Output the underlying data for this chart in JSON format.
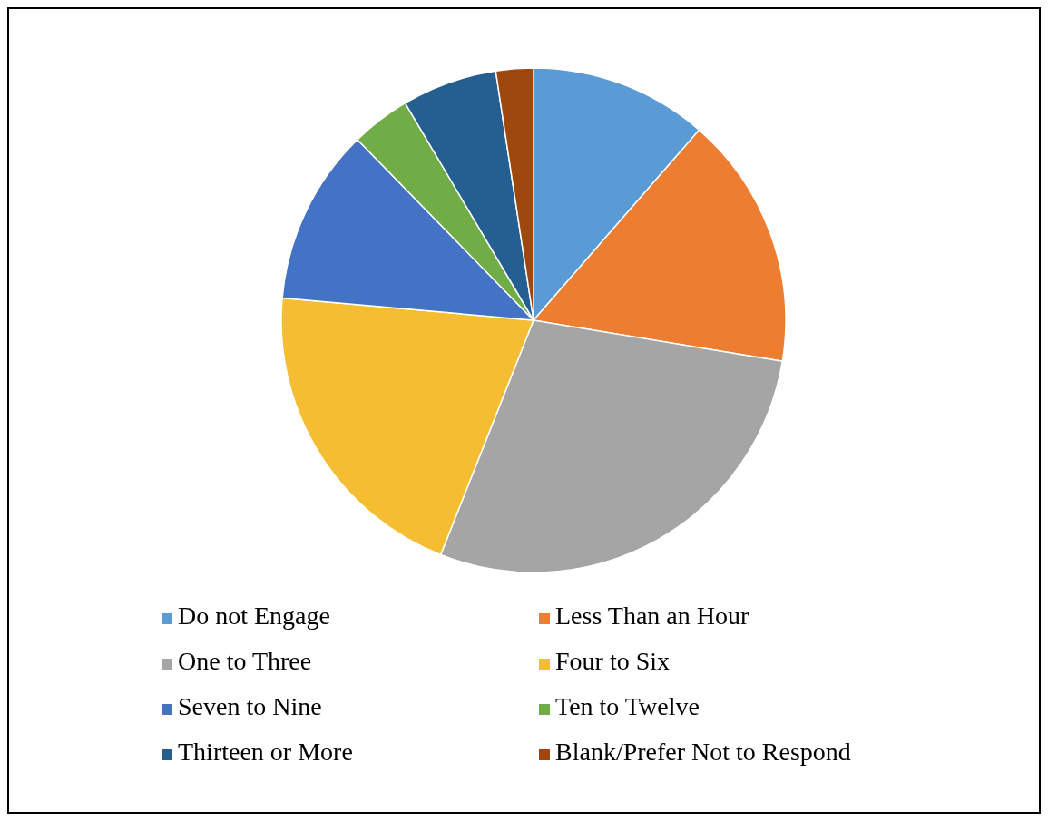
{
  "chart_data": {
    "type": "pie",
    "categories": [
      "Do not Engage",
      "Less Than an Hour",
      "One to Three",
      "Four to Six",
      "Seven to Nine",
      "Ten to Twelve",
      "Thirteen or More",
      "Blank/Prefer Not to Respond"
    ],
    "values": [
      11.4,
      16.2,
      28.4,
      20.4,
      11.3,
      3.8,
      6.1,
      2.4
    ],
    "colors": [
      "#5b9bd5",
      "#ed7d31",
      "#a5a5a5",
      "#f5bd32",
      "#4472c4",
      "#70ad47",
      "#255e91",
      "#9e480e"
    ],
    "legend": "bottom"
  }
}
